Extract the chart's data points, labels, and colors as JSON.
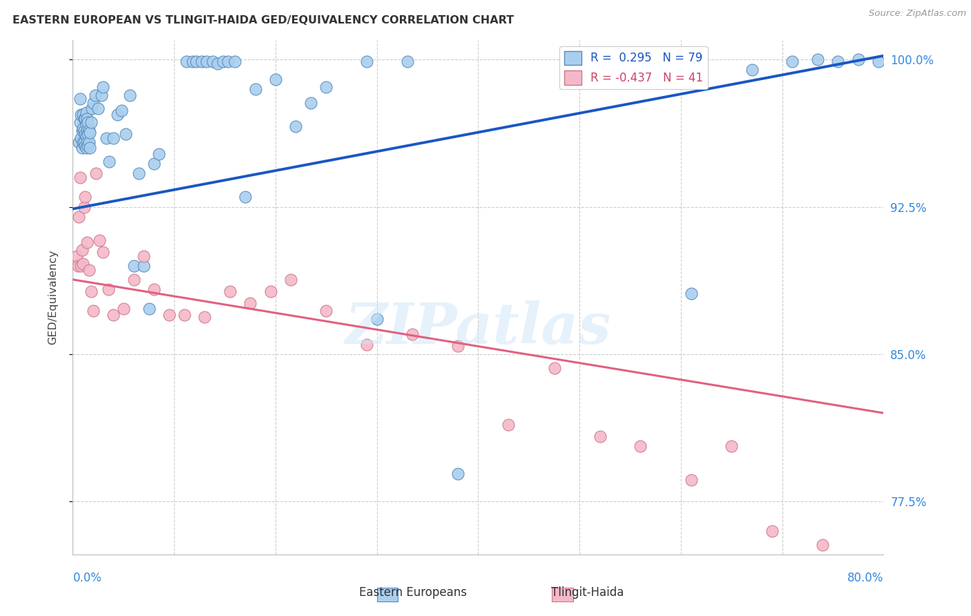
{
  "title": "EASTERN EUROPEAN VS TLINGIT-HAIDA GED/EQUIVALENCY CORRELATION CHART",
  "source": "Source: ZipAtlas.com",
  "ylabel": "GED/Equivalency",
  "xmin": 0.0,
  "xmax": 0.8,
  "ymin": 0.748,
  "ymax": 1.01,
  "blue_color": "#aacfee",
  "pink_color": "#f4b8c8",
  "blue_edge_color": "#5588bb",
  "pink_edge_color": "#cc7788",
  "blue_line_color": "#1a56c4",
  "pink_line_color": "#e06080",
  "right_yticks": [
    0.775,
    0.85,
    0.925,
    1.0
  ],
  "right_ytick_labels": [
    "77.5%",
    "85.0%",
    "92.5%",
    "100.0%"
  ],
  "legend_r1": "R =  0.295   N = 79",
  "legend_r2": "R = -0.437   N = 41",
  "legend_label1": "Eastern Europeans",
  "legend_label2": "Tlingit-Haida",
  "blue_x": [
    0.006,
    0.007,
    0.007,
    0.008,
    0.008,
    0.009,
    0.009,
    0.01,
    0.01,
    0.01,
    0.011,
    0.011,
    0.011,
    0.012,
    0.012,
    0.012,
    0.013,
    0.013,
    0.013,
    0.013,
    0.014,
    0.014,
    0.014,
    0.015,
    0.015,
    0.015,
    0.016,
    0.016,
    0.017,
    0.017,
    0.018,
    0.019,
    0.02,
    0.022,
    0.025,
    0.028,
    0.03,
    0.033,
    0.036,
    0.04,
    0.044,
    0.048,
    0.052,
    0.056,
    0.06,
    0.065,
    0.07,
    0.075,
    0.08,
    0.085,
    0.112,
    0.118,
    0.122,
    0.127,
    0.132,
    0.138,
    0.143,
    0.148,
    0.153,
    0.16,
    0.17,
    0.18,
    0.2,
    0.22,
    0.235,
    0.25,
    0.3,
    0.38,
    0.49,
    0.545,
    0.61,
    0.67,
    0.71,
    0.735,
    0.755,
    0.775,
    0.795,
    0.29,
    0.33
  ],
  "blue_y": [
    0.958,
    0.968,
    0.98,
    0.96,
    0.972,
    0.955,
    0.964,
    0.958,
    0.965,
    0.972,
    0.958,
    0.964,
    0.97,
    0.956,
    0.962,
    0.97,
    0.955,
    0.961,
    0.967,
    0.973,
    0.958,
    0.964,
    0.97,
    0.956,
    0.962,
    0.968,
    0.958,
    0.964,
    0.955,
    0.963,
    0.968,
    0.975,
    0.978,
    0.982,
    0.975,
    0.982,
    0.986,
    0.96,
    0.948,
    0.96,
    0.972,
    0.974,
    0.962,
    0.982,
    0.895,
    0.942,
    0.895,
    0.873,
    0.947,
    0.952,
    0.999,
    0.999,
    0.999,
    0.999,
    0.999,
    0.999,
    0.998,
    0.999,
    0.999,
    0.999,
    0.93,
    0.985,
    0.99,
    0.966,
    0.978,
    0.986,
    0.868,
    0.789,
    0.999,
    1.0,
    0.881,
    0.995,
    0.999,
    1.0,
    0.999,
    1.0,
    0.999,
    0.999,
    0.999
  ],
  "pink_x": [
    0.004,
    0.005,
    0.006,
    0.007,
    0.008,
    0.009,
    0.01,
    0.011,
    0.012,
    0.014,
    0.016,
    0.018,
    0.02,
    0.023,
    0.026,
    0.03,
    0.035,
    0.04,
    0.05,
    0.06,
    0.07,
    0.08,
    0.095,
    0.11,
    0.13,
    0.155,
    0.175,
    0.195,
    0.215,
    0.25,
    0.29,
    0.335,
    0.38,
    0.43,
    0.475,
    0.52,
    0.56,
    0.61,
    0.65,
    0.69,
    0.74
  ],
  "pink_y": [
    0.9,
    0.895,
    0.92,
    0.94,
    0.895,
    0.903,
    0.896,
    0.925,
    0.93,
    0.907,
    0.893,
    0.882,
    0.872,
    0.942,
    0.908,
    0.902,
    0.883,
    0.87,
    0.873,
    0.888,
    0.9,
    0.883,
    0.87,
    0.87,
    0.869,
    0.882,
    0.876,
    0.882,
    0.888,
    0.872,
    0.855,
    0.86,
    0.854,
    0.814,
    0.843,
    0.808,
    0.803,
    0.786,
    0.803,
    0.76,
    0.753
  ]
}
